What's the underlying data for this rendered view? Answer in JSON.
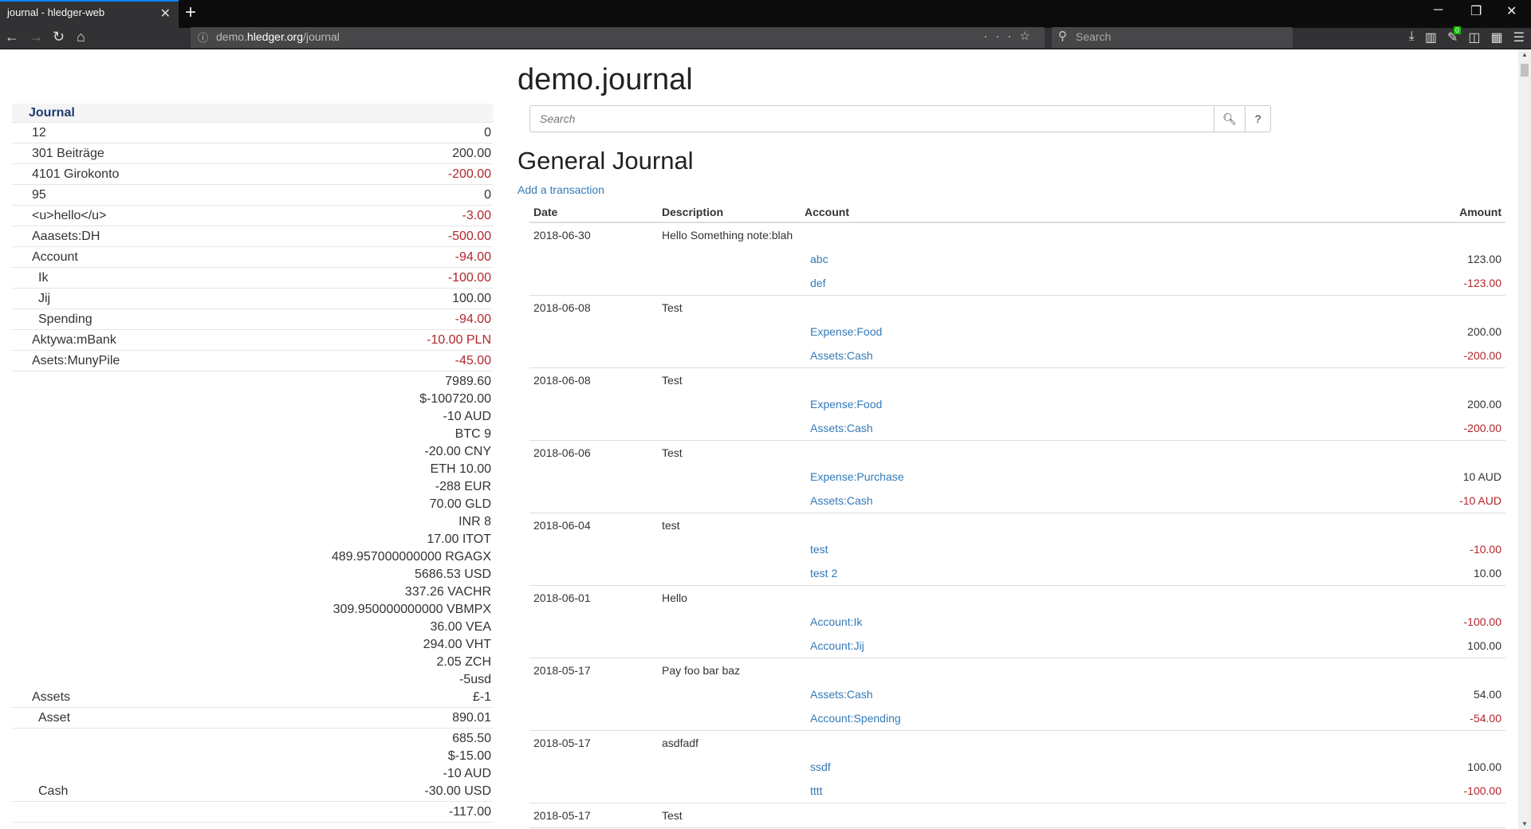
{
  "browser": {
    "tab_title": "journal - hledger-web",
    "url_prefix": "demo.",
    "url_host": "hledger.org",
    "url_path": "/journal",
    "search_placeholder": "Search",
    "notification_count": "0"
  },
  "sidebar": {
    "header": "Journal",
    "rows": [
      {
        "name": "12",
        "level": 1,
        "amounts": [
          {
            "v": "0"
          }
        ]
      },
      {
        "name": "301 Beiträge",
        "level": 1,
        "amounts": [
          {
            "v": "200.00"
          }
        ]
      },
      {
        "name": "4101 Girokonto",
        "level": 1,
        "amounts": [
          {
            "v": "-200.00",
            "neg": true
          }
        ]
      },
      {
        "name": "95",
        "level": 1,
        "amounts": [
          {
            "v": "0"
          }
        ]
      },
      {
        "name": "<u>hello</u>",
        "level": 1,
        "amounts": [
          {
            "v": "-3.00",
            "neg": true
          }
        ]
      },
      {
        "name": "Aaasets:DH",
        "level": 1,
        "amounts": [
          {
            "v": "-500.00",
            "neg": true
          }
        ]
      },
      {
        "name": "Account",
        "level": 1,
        "amounts": [
          {
            "v": "-94.00",
            "neg": true
          }
        ]
      },
      {
        "name": "Ik",
        "level": 2,
        "amounts": [
          {
            "v": "-100.00",
            "neg": true
          }
        ]
      },
      {
        "name": "Jij",
        "level": 2,
        "amounts": [
          {
            "v": "100.00"
          }
        ]
      },
      {
        "name": "Spending",
        "level": 2,
        "amounts": [
          {
            "v": "-94.00",
            "neg": true
          }
        ]
      },
      {
        "name": "Aktywa:mBank",
        "level": 1,
        "amounts": [
          {
            "v": "-10.00 PLN",
            "neg": true
          }
        ]
      },
      {
        "name": "Asets:MunyPile",
        "level": 1,
        "amounts": [
          {
            "v": "-45.00",
            "neg": true
          }
        ]
      },
      {
        "name": "Assets",
        "level": 1,
        "amounts": [
          {
            "v": "7989.60"
          },
          {
            "v": "$-100720.00"
          },
          {
            "v": "-10 AUD"
          },
          {
            "v": "BTC 9"
          },
          {
            "v": "-20.00 CNY"
          },
          {
            "v": "ETH 10.00"
          },
          {
            "v": "-288 EUR"
          },
          {
            "v": "70.00 GLD"
          },
          {
            "v": "INR 8"
          },
          {
            "v": "17.00 ITOT"
          },
          {
            "v": "489.957000000000 RGAGX"
          },
          {
            "v": "5686.53 USD"
          },
          {
            "v": "337.26 VACHR"
          },
          {
            "v": "309.950000000000 VBMPX"
          },
          {
            "v": "36.00 VEA"
          },
          {
            "v": "294.00 VHT"
          },
          {
            "v": "2.05 ZCH"
          },
          {
            "v": "-5usd"
          },
          {
            "v": "£-1"
          }
        ]
      },
      {
        "name": "Asset",
        "level": 2,
        "amounts": [
          {
            "v": "890.01"
          }
        ]
      },
      {
        "name": "Cash",
        "level": 2,
        "amounts": [
          {
            "v": "685.50"
          },
          {
            "v": "$-15.00"
          },
          {
            "v": "-10 AUD"
          },
          {
            "v": "-30.00 USD"
          }
        ]
      },
      {
        "name": "",
        "level": 2,
        "amounts": [
          {
            "v": "-117.00"
          }
        ]
      }
    ]
  },
  "main": {
    "title": "demo.journal",
    "search_placeholder": "Search",
    "help_label": "?",
    "journal_title": "General Journal",
    "add_transaction": "Add a transaction",
    "columns": [
      "Date",
      "Description",
      "Account",
      "Amount"
    ],
    "transactions": [
      {
        "date": "2018-06-30",
        "desc": "Hello Something note:blah",
        "postings": [
          {
            "acct": "abc",
            "amt": "123.00"
          },
          {
            "acct": "def",
            "amt": "-123.00",
            "neg": true
          }
        ]
      },
      {
        "date": "2018-06-08",
        "desc": "Test",
        "postings": [
          {
            "acct": "Expense:Food",
            "amt": "200.00"
          },
          {
            "acct": "Assets:Cash",
            "amt": "-200.00",
            "neg": true
          }
        ]
      },
      {
        "date": "2018-06-08",
        "desc": "Test",
        "postings": [
          {
            "acct": "Expense:Food",
            "amt": "200.00"
          },
          {
            "acct": "Assets:Cash",
            "amt": "-200.00",
            "neg": true
          }
        ]
      },
      {
        "date": "2018-06-06",
        "desc": "Test",
        "postings": [
          {
            "acct": "Expense:Purchase",
            "amt": "10 AUD"
          },
          {
            "acct": "Assets:Cash",
            "amt": "-10 AUD",
            "neg": true
          }
        ]
      },
      {
        "date": "2018-06-04",
        "desc": "test",
        "postings": [
          {
            "acct": "test",
            "amt": "-10.00",
            "neg": true
          },
          {
            "acct": "test 2",
            "amt": "10.00"
          }
        ]
      },
      {
        "date": "2018-06-01",
        "desc": "Hello",
        "postings": [
          {
            "acct": "Account:Ik",
            "amt": "-100.00",
            "neg": true
          },
          {
            "acct": "Account:Jij",
            "amt": "100.00"
          }
        ]
      },
      {
        "date": "2018-05-17",
        "desc": "Pay foo bar baz",
        "postings": [
          {
            "acct": "Assets:Cash",
            "amt": "54.00"
          },
          {
            "acct": "Account:Spending",
            "amt": "-54.00",
            "neg": true
          }
        ]
      },
      {
        "date": "2018-05-17",
        "desc": "asdfadf",
        "postings": [
          {
            "acct": "ssdf",
            "amt": "100.00"
          },
          {
            "acct": "tttt",
            "amt": "-100.00",
            "neg": true
          }
        ]
      },
      {
        "date": "2018-05-17",
        "desc": "Test",
        "postings": []
      }
    ]
  },
  "colors": {
    "accent": "#337ab7",
    "negative": "#b0272c",
    "tab_highlight": "#0a84ff"
  }
}
